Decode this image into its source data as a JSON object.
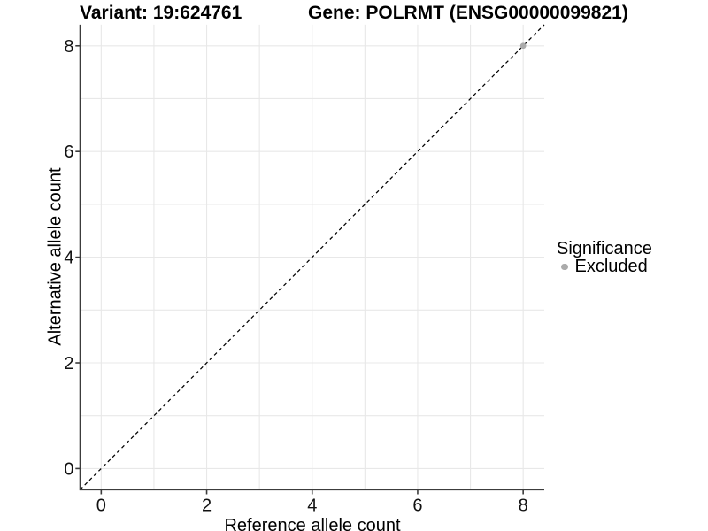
{
  "header": {
    "variant_title": "Variant: 19:624761",
    "gene_title": "Gene: POLRMT (ENSG00000099821)"
  },
  "chart_data": {
    "type": "scatter",
    "xlabel": "Reference allele count",
    "ylabel": "Alternative allele count",
    "xlim": [
      -0.4,
      8.4
    ],
    "ylim": [
      -0.4,
      8.4
    ],
    "x_ticks": [
      0,
      2,
      4,
      6,
      8
    ],
    "y_ticks": [
      0,
      2,
      4,
      6,
      8
    ],
    "grid_values": [
      0,
      1,
      2,
      3,
      4,
      5,
      6,
      7,
      8
    ],
    "grid": true,
    "series": [
      {
        "name": "Excluded",
        "color": "#ababab",
        "points": [
          {
            "x": 8,
            "y": 8
          }
        ]
      }
    ],
    "identity_line": {
      "style": "dashed",
      "color": "#000000",
      "from": [
        -0.4,
        -0.4
      ],
      "to": [
        8.4,
        8.4
      ]
    },
    "legend": {
      "title": "Significance",
      "position": "right",
      "items": [
        {
          "label": "Excluded",
          "color": "#ababab"
        }
      ]
    }
  },
  "colors": {
    "background": "#ffffff",
    "grid": "#e8e8e8",
    "axis": "#3c3c3c",
    "tick_label": "#111111"
  }
}
